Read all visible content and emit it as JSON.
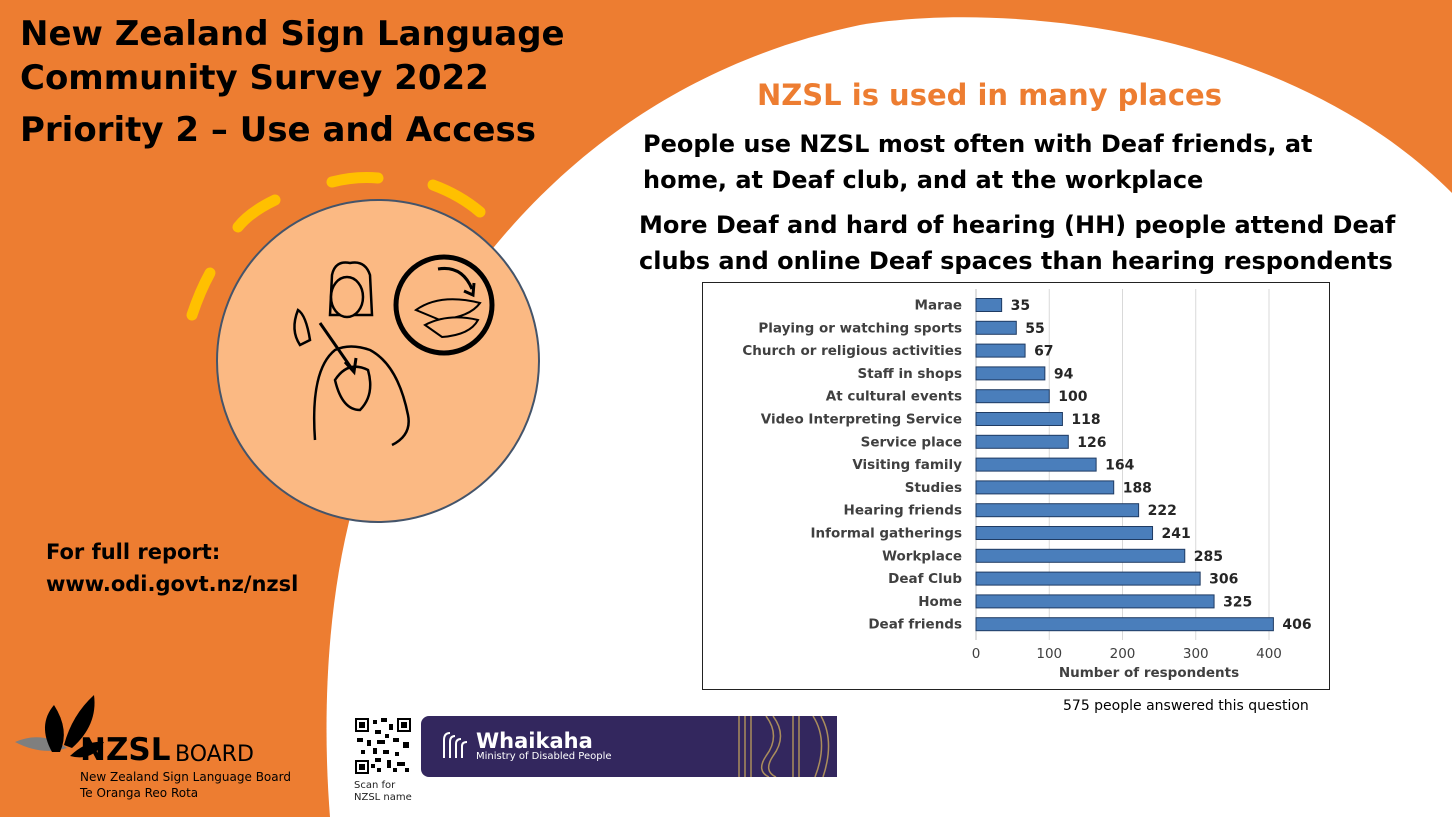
{
  "header": {
    "title_line1": "New Zealand Sign Language",
    "title_line2": "Community Survey 2022",
    "title_line3": "Priority 2 – Use and Access"
  },
  "report": {
    "label": "For full report:",
    "url": "www.odi.govt.nz/nzsl"
  },
  "main": {
    "subheading": "NZSL is used in many places",
    "paragraph1": "People use NZSL most often with Deaf friends, at home, at Deaf club, and at the workplace",
    "paragraph2": "More Deaf and hard of hearing (HH) people attend Deaf clubs and online Deaf spaces than hearing respondents",
    "footnote": "575 people answered this question"
  },
  "chart_data": {
    "type": "bar",
    "orientation": "horizontal",
    "categories": [
      "Marae",
      "Playing or watching sports",
      "Church or religious activities",
      "Staff in shops",
      "At cultural events",
      "Video Interpreting Service",
      "Service place",
      "Visiting family",
      "Studies",
      "Hearing friends",
      "Informal gatherings",
      "Workplace",
      "Deaf Club",
      "Home",
      "Deaf friends"
    ],
    "values": [
      35,
      55,
      67,
      94,
      100,
      118,
      126,
      164,
      188,
      222,
      241,
      285,
      306,
      325,
      406
    ],
    "xlabel": "Number of respondents",
    "ylabel": "",
    "xlim": [
      0,
      400
    ],
    "xticks": [
      0,
      100,
      200,
      300,
      400
    ],
    "grid": "vertical",
    "bar_color": "#4a7ebb"
  },
  "footer": {
    "nzsl_logo_text": "NZSL",
    "board_text": "BOARD",
    "board_full_line1": "New Zealand Sign Language Board",
    "board_full_line2": "Te Oranga Reo Rota",
    "qr_caption_line1": "Scan for",
    "qr_caption_line2": "NZSL name",
    "whaikaha_name": "Whaikaha",
    "whaikaha_sub": "Ministry of Disabled People"
  },
  "colors": {
    "background_orange": "#ed7d31",
    "circle_fill": "#fbb983",
    "dash_yellow": "#ffc000",
    "banner_purple": "#33275e"
  }
}
